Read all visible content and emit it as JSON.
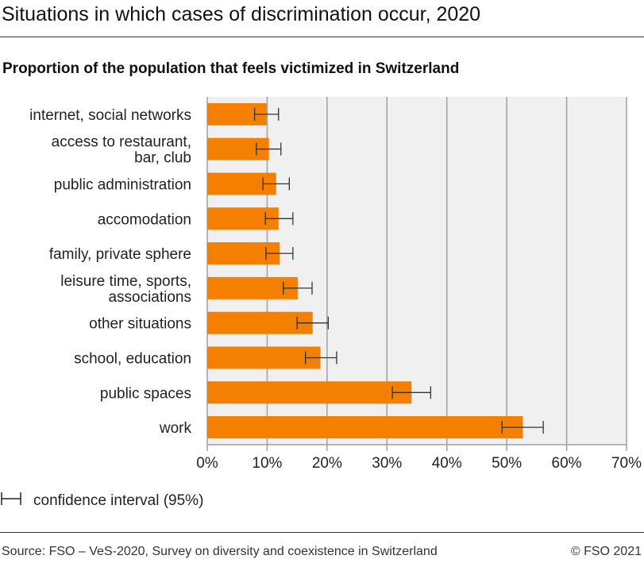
{
  "chart_data": {
    "type": "bar",
    "orientation": "horizontal",
    "title": "Situations in which cases of discrimination occur, 2020",
    "subtitle": "Proportion of the population that feels victimized in Switzerland",
    "categories": [
      [
        "internet, social networks"
      ],
      [
        "access to restaurant,",
        "bar, club"
      ],
      [
        "public administration"
      ],
      [
        "accomodation"
      ],
      [
        "family, private sphere"
      ],
      [
        "leisure time, sports,",
        "associations"
      ],
      [
        "other situations"
      ],
      [
        "school, education"
      ],
      [
        "public spaces"
      ],
      [
        "work"
      ]
    ],
    "values": [
      9.9,
      10.3,
      11.5,
      11.9,
      12.1,
      15.1,
      17.6,
      18.9,
      34.1,
      52.7
    ],
    "ci_low": [
      7.9,
      8.2,
      9.3,
      9.7,
      9.8,
      12.7,
      15.0,
      16.4,
      30.9,
      49.2
    ],
    "ci_high": [
      11.9,
      12.3,
      13.7,
      14.3,
      14.3,
      17.5,
      20.2,
      21.6,
      37.3,
      56.1
    ],
    "xlim": [
      0,
      70
    ],
    "xticks": [
      0,
      10,
      20,
      30,
      40,
      50,
      60,
      70
    ],
    "xtick_labels": [
      "0%",
      "10%",
      "20%",
      "30%",
      "40%",
      "50%",
      "60%",
      "70%"
    ],
    "grid": true,
    "bar_color": "#f47f00",
    "plot_background": "#f0f0f0",
    "legend": {
      "label": "confidence interval (95%)",
      "placement": "bottom-left"
    }
  },
  "footer": {
    "source": "Source: FSO – VeS-2020, Survey on diversity and coexistence in Switzerland",
    "copyright": "© FSO 2021"
  }
}
